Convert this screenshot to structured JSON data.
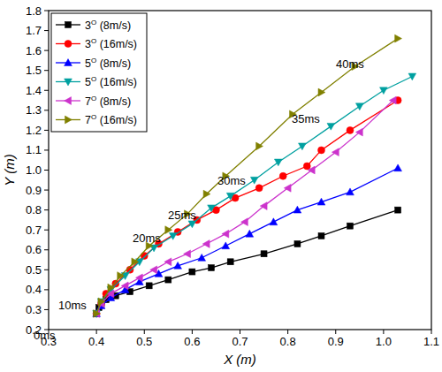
{
  "chart_data": {
    "type": "line",
    "x_label": "X (m)",
    "y_label": "Y (m)",
    "xlim": [
      0.3,
      1.1
    ],
    "xticks": [
      0.3,
      0.4,
      0.5,
      0.6,
      0.7,
      0.8,
      0.9,
      {
        "value": 1.0,
        "label": "1.0"
      },
      1.1
    ],
    "ylim": [
      0.2,
      1.8
    ],
    "yticks": [
      0.2,
      0.3,
      0.4,
      0.5,
      0.6,
      0.7,
      0.8,
      0.9,
      {
        "value": 1.0,
        "label": "1.0"
      },
      1.1,
      1.2,
      1.3,
      1.4,
      1.5,
      1.6,
      1.7,
      1.8
    ],
    "legend": "top-left",
    "grid": false,
    "annotations": [
      "0ms",
      "10ms",
      "20ms",
      "25ms",
      "30ms",
      "35ms",
      "40ms"
    ],
    "series": [
      {
        "name": "3O (8m/s)",
        "color": "#000000",
        "marker": "square",
        "x": [
          0.4,
          0.405,
          0.41,
          0.42,
          0.44,
          0.47,
          0.51,
          0.55,
          0.6,
          0.64,
          0.68,
          0.75,
          0.82,
          0.87,
          0.93,
          1.03
        ],
        "values": [
          0.28,
          0.31,
          0.33,
          0.35,
          0.37,
          0.39,
          0.42,
          0.45,
          0.49,
          0.51,
          0.54,
          0.58,
          0.63,
          0.67,
          0.72,
          0.8
        ]
      },
      {
        "name": "3O (16m/s)",
        "color": "#ff0000",
        "marker": "circle",
        "x": [
          0.4,
          0.41,
          0.42,
          0.44,
          0.47,
          0.5,
          0.53,
          0.57,
          0.61,
          0.65,
          0.69,
          0.74,
          0.79,
          0.84,
          0.87,
          0.93,
          1.03
        ],
        "values": [
          0.28,
          0.33,
          0.38,
          0.43,
          0.5,
          0.57,
          0.63,
          0.69,
          0.75,
          0.8,
          0.86,
          0.91,
          0.97,
          1.02,
          1.1,
          1.2,
          1.35
        ]
      },
      {
        "name": "5O (8m/s)",
        "color": "#0000ff",
        "marker": "triangle-up",
        "x": [
          0.4,
          0.41,
          0.43,
          0.46,
          0.49,
          0.53,
          0.57,
          0.62,
          0.67,
          0.72,
          0.77,
          0.82,
          0.87,
          0.93,
          1.03
        ],
        "values": [
          0.28,
          0.32,
          0.36,
          0.4,
          0.44,
          0.48,
          0.52,
          0.56,
          0.62,
          0.68,
          0.74,
          0.8,
          0.84,
          0.89,
          1.01
        ]
      },
      {
        "name": "5O (16m/s)",
        "color": "#00a0a0",
        "marker": "triangle-down",
        "x": [
          0.4,
          0.41,
          0.43,
          0.46,
          0.49,
          0.52,
          0.56,
          0.6,
          0.64,
          0.68,
          0.73,
          0.78,
          0.83,
          0.89,
          0.95,
          1.0,
          1.06
        ],
        "values": [
          0.28,
          0.34,
          0.4,
          0.47,
          0.54,
          0.61,
          0.67,
          0.73,
          0.81,
          0.87,
          0.95,
          1.04,
          1.12,
          1.22,
          1.32,
          1.4,
          1.47
        ]
      },
      {
        "name": "7O (8m/s)",
        "color": "#cc33cc",
        "marker": "triangle-left",
        "x": [
          0.4,
          0.41,
          0.43,
          0.46,
          0.49,
          0.52,
          0.55,
          0.59,
          0.63,
          0.67,
          0.71,
          0.75,
          0.8,
          0.85,
          0.9,
          0.95,
          1.02
        ],
        "values": [
          0.28,
          0.33,
          0.38,
          0.42,
          0.46,
          0.5,
          0.54,
          0.58,
          0.63,
          0.68,
          0.74,
          0.82,
          0.91,
          1.0,
          1.09,
          1.19,
          1.35
        ]
      },
      {
        "name": "7O (16m/s)",
        "color": "#808000",
        "marker": "triangle-right",
        "x": [
          0.4,
          0.41,
          0.43,
          0.45,
          0.48,
          0.51,
          0.55,
          0.59,
          0.63,
          0.67,
          0.74,
          0.81,
          0.87,
          0.94,
          1.03
        ],
        "values": [
          0.28,
          0.34,
          0.41,
          0.47,
          0.54,
          0.62,
          0.7,
          0.78,
          0.88,
          0.97,
          1.12,
          1.28,
          1.39,
          1.52,
          1.66
        ]
      }
    ]
  }
}
